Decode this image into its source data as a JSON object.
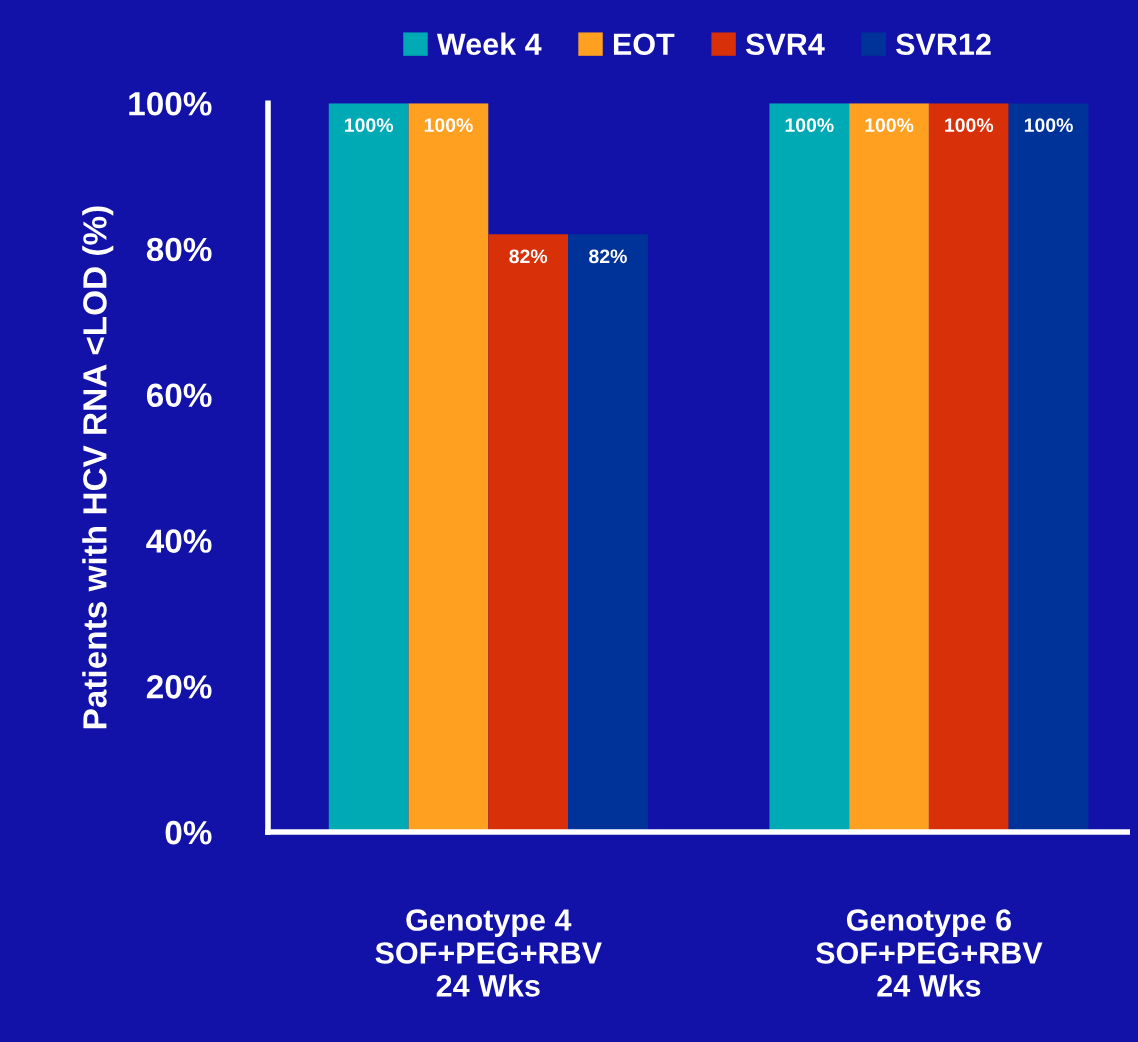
{
  "chart_data": {
    "type": "bar",
    "ylabel": "Patients with HCV RNA <LOD (%)",
    "categories": [
      "Genotype 4\nSOF+PEG+RBV\n24 Wks",
      "Genotype 6\nSOF+PEG+RBV\n24 Wks"
    ],
    "series": [
      {
        "name": "Week 4",
        "color": "#00aab4",
        "values": [
          100,
          100
        ],
        "value_labels": [
          "100%",
          "100%"
        ]
      },
      {
        "name": "EOT",
        "color": "#ffa020",
        "values": [
          100,
          100
        ],
        "value_labels": [
          "100%",
          "100%"
        ]
      },
      {
        "name": "SVR4",
        "color": "#d83008",
        "values": [
          82,
          100
        ],
        "value_labels": [
          "82%",
          "100%"
        ]
      },
      {
        "name": "SVR12",
        "color": "#003399",
        "values": [
          82,
          100
        ],
        "value_labels": [
          "82%",
          "100%"
        ]
      }
    ],
    "ylim": [
      0,
      100
    ],
    "yticks": [
      {
        "value": 0,
        "label": "0%"
      },
      {
        "value": 20,
        "label": "20%"
      },
      {
        "value": 40,
        "label": "40%"
      },
      {
        "value": 60,
        "label": "60%"
      },
      {
        "value": 80,
        "label": "80%"
      },
      {
        "value": 100,
        "label": "100%"
      }
    ],
    "grid": false,
    "legend": "top"
  }
}
